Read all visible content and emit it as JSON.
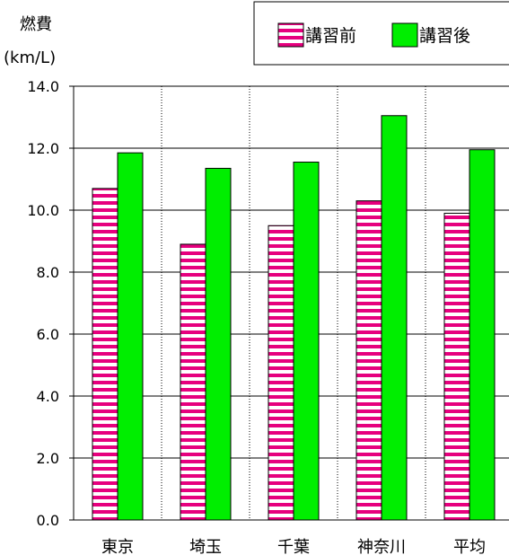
{
  "chart_data": {
    "type": "bar",
    "title": "",
    "ylabel_line1": "燃費",
    "ylabel_line2": "(km/L)",
    "xlabel": "",
    "ylim": [
      0,
      14
    ],
    "yticks": [
      "0.0",
      "2.0",
      "4.0",
      "6.0",
      "8.0",
      "10.0",
      "12.0",
      "14.0"
    ],
    "categories": [
      "東京",
      "埼玉",
      "千葉",
      "神奈川",
      "平均"
    ],
    "series": [
      {
        "name": "講習前",
        "values": [
          10.7,
          8.9,
          9.5,
          10.3,
          9.9
        ],
        "color": "#e6007e",
        "pattern": "horizontal-stripes"
      },
      {
        "name": "講習後",
        "values": [
          11.85,
          11.35,
          11.55,
          13.05,
          11.95
        ],
        "color": "#00ee00",
        "pattern": "solid"
      }
    ],
    "grid": {
      "horizontal": "solid",
      "vertical": "dotted"
    },
    "legend_position": "top-right"
  }
}
